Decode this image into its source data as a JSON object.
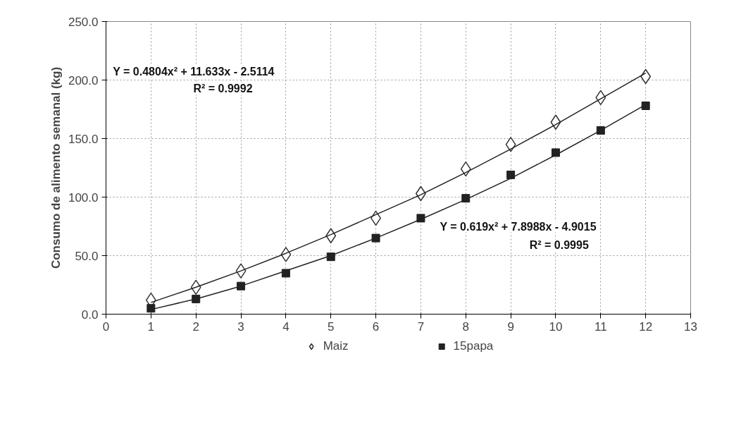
{
  "chart_data": {
    "type": "scatter",
    "ylabel": "Consumo de alimento semanal (kg)",
    "x": [
      1,
      2,
      3,
      4,
      5,
      6,
      7,
      8,
      9,
      10,
      11,
      12
    ],
    "series": [
      {
        "name": "Maiz",
        "marker": "diamond",
        "color": "#333333",
        "values": [
          12,
          23,
          37,
          51,
          67,
          82,
          103,
          124,
          145,
          164,
          185,
          203
        ]
      },
      {
        "name": "15papa",
        "marker": "square",
        "color": "#222222",
        "values": [
          5,
          13,
          24,
          35,
          49,
          65,
          82,
          99,
          119,
          138,
          157,
          178
        ]
      },
      {
        "type": "line",
        "color": "#222222",
        "x": [
          1,
          2,
          3,
          4,
          5,
          6,
          7,
          8,
          9,
          10,
          11,
          12
        ],
        "values": [
          10,
          23,
          37,
          52,
          68,
          85,
          102,
          121,
          141,
          162,
          184,
          206
        ]
      },
      {
        "type": "line",
        "color": "#222222",
        "x": [
          1,
          2,
          3,
          4,
          5,
          6,
          7,
          8,
          9,
          10,
          11,
          12
        ],
        "values": [
          4,
          13,
          24,
          37,
          50,
          65,
          81,
          98,
          116,
          136,
          157,
          179
        ]
      }
    ],
    "xlim": [
      0,
      13
    ],
    "xticks": [
      0,
      1,
      2,
      3,
      4,
      5,
      6,
      7,
      8,
      9,
      10,
      11,
      12,
      13
    ],
    "ylim": [
      0,
      250
    ],
    "yticks": [
      {
        "value": 0,
        "label": "0.0"
      },
      {
        "value": 50,
        "label": "50.0"
      },
      {
        "value": 100,
        "label": "100.0"
      },
      {
        "value": 150,
        "label": "150.0"
      },
      {
        "value": 200,
        "label": "200.0"
      },
      {
        "value": 250,
        "label": "250.0"
      }
    ],
    "annotations": [
      "Y = 0.4804x² + 11.633x - 2.5114",
      "R² = 0.9992",
      "Y = 0.619x² + 7.8988x - 4.9015",
      "R² = 0.9995"
    ],
    "grid": true,
    "legend": "bottom"
  }
}
